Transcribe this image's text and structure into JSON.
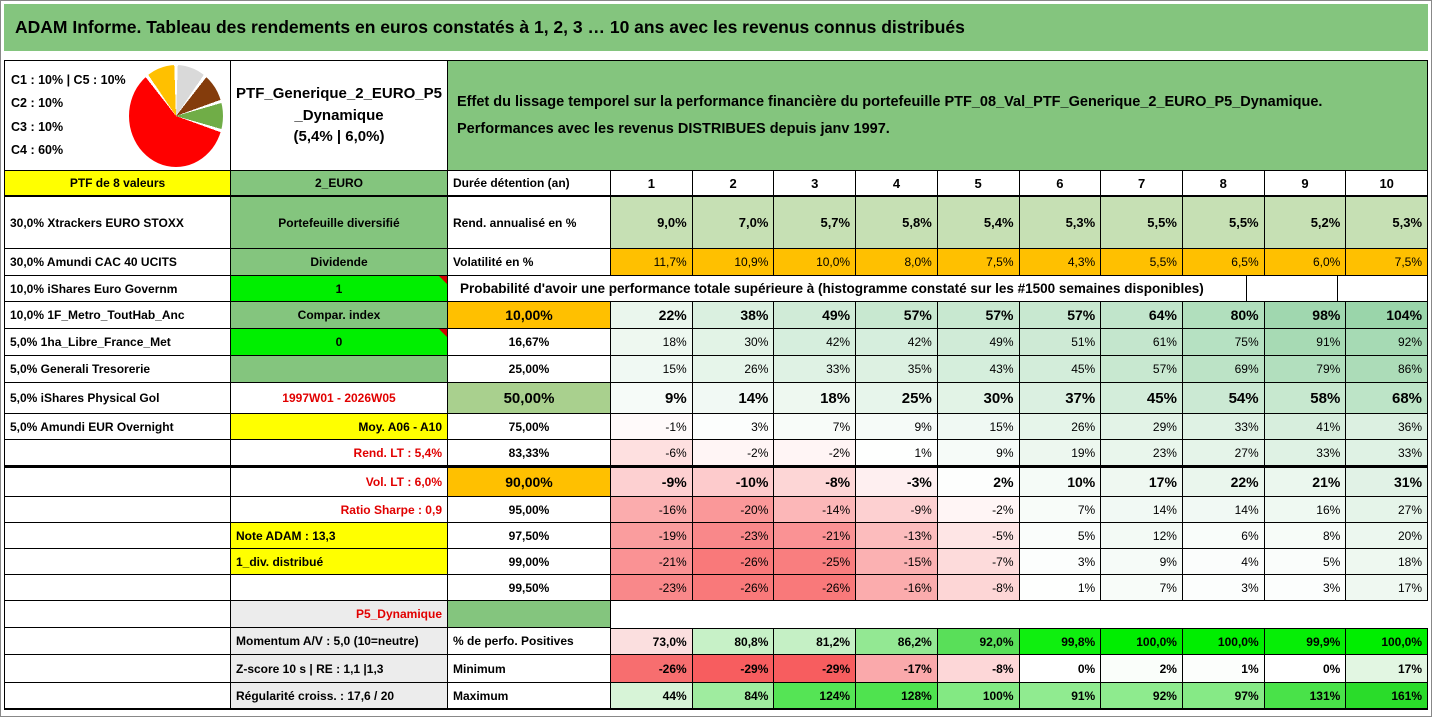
{
  "title": "ADAM Informe. Tableau des rendements en euros constatés à 1, 2, 3 … 10 ans avec les revenus connus distribués",
  "palette": {
    "green": "#84C57E",
    "sage": "#A9D08E",
    "pale": "#C6E0B4",
    "orange": "#FFC000",
    "yellow": "#FFFF00",
    "bright": "#00EF00",
    "gray": "#ECECEC",
    "redtext": "#E10000",
    "scale_pos_max": "#63BE7B",
    "scale_neg_max": "#F8696B"
  },
  "info": {
    "composition_lines": [
      "C1 : 10% | C5 : 10%",
      "C2 : 10%",
      "C3 : 10%",
      "C4 : 60%"
    ],
    "pie": {
      "slices": [
        {
          "value": 10,
          "color": "#D9D9D9"
        },
        {
          "value": 10,
          "color": "#843C0C"
        },
        {
          "value": 10,
          "color": "#70AD47"
        },
        {
          "value": 60,
          "color": "#FF0000"
        },
        {
          "value": 10,
          "color": "#FFC000"
        }
      ]
    },
    "portfolio_name_lines": [
      "PTF_Generique_2_EURO_P5",
      "_Dynamique",
      "(5,4% | 6,0%)"
    ],
    "description_lines": [
      "Effet du lissage temporel sur la performance financière du portefeuille PTF_08_Val_PTF_Generique_2_EURO_P5_Dynamique.",
      "Performances avec les revenus DISTRIBUES depuis janv 1997."
    ]
  },
  "table": {
    "years": [
      "1",
      "2",
      "3",
      "4",
      "5",
      "6",
      "7",
      "8",
      "9",
      "10"
    ],
    "rows": [
      {
        "a": {
          "t": "PTF de 8 valeurs",
          "cls": "bg-yellow b tc"
        },
        "b": {
          "t": "2_EURO",
          "cls": "bg-green b tc"
        },
        "c": {
          "t": "Durée détention (an)",
          "cls": "b"
        },
        "type": "years",
        "rowCls": "thickB"
      },
      {
        "a": {
          "t": "30,0% Xtrackers EURO STOXX",
          "cls": "b"
        },
        "b": {
          "t": "Portefeuille diversifié",
          "cls": "bg-green b tc"
        },
        "c": {
          "t": "Rend. annualisé en %",
          "cls": "b"
        },
        "type": "cells",
        "cellCls": "b tr sz13",
        "cellBg": "#C6E0B4",
        "values": [
          "9,0%",
          "7,0%",
          "5,7%",
          "5,8%",
          "5,4%",
          "5,3%",
          "5,5%",
          "5,5%",
          "5,2%",
          "5,3%"
        ]
      },
      {
        "a": {
          "t": "30,0% Amundi CAC 40 UCITS",
          "cls": "b"
        },
        "b": {
          "t": "Dividende",
          "cls": "bg-green b tc"
        },
        "c": {
          "t": "Volatilité en %",
          "cls": "b"
        },
        "type": "cells",
        "cellCls": "tr",
        "cellBg": "#FFC000",
        "values": [
          "11,7%",
          "10,9%",
          "10,0%",
          "8,0%",
          "7,5%",
          "4,3%",
          "5,5%",
          "6,5%",
          "6,0%",
          "7,5%"
        ]
      },
      {
        "a": {
          "t": "10,0% iShares Euro Governm",
          "cls": "b"
        },
        "b": {
          "t": "1",
          "cls": "bg-bright b tc comment"
        },
        "type": "span",
        "spanText": "Probabilité d'avoir une performance totale supérieure à (histogramme constaté sur les #1500 semaines disponibles)",
        "tailCount": 2
      },
      {
        "a": {
          "t": "10,0% 1F_Metro_ToutHab_Anc",
          "cls": "b"
        },
        "b": {
          "t": "Compar. index",
          "cls": "bg-green b tc"
        },
        "c": {
          "t": "10,00%",
          "cls": "bg-orange b tc sz14"
        },
        "type": "scale",
        "cellCls": "b tr sz14",
        "values": [
          22,
          38,
          49,
          57,
          57,
          57,
          64,
          80,
          98,
          104
        ]
      },
      {
        "a": {
          "t": "5,0% 1ha_Libre_France_Met",
          "cls": "b"
        },
        "b": {
          "t": "0",
          "cls": "bg-bright b tc comment"
        },
        "c": {
          "t": "16,67%",
          "cls": "b tc"
        },
        "type": "scale",
        "cellCls": "tr",
        "values": [
          18,
          30,
          42,
          42,
          49,
          51,
          61,
          75,
          91,
          92
        ]
      },
      {
        "a": {
          "t": "5,0% Generali Tresorerie",
          "cls": "b"
        },
        "b": {
          "t": "",
          "cls": "bg-green"
        },
        "c": {
          "t": "25,00%",
          "cls": "b tc"
        },
        "type": "scale",
        "cellCls": "tr",
        "values": [
          15,
          26,
          33,
          35,
          43,
          45,
          57,
          69,
          79,
          86
        ]
      },
      {
        "a": {
          "t": "5,0% iShares Physical Gol",
          "cls": "b"
        },
        "b": {
          "t": "1997W01 - 2026W05",
          "cls": "b tc red"
        },
        "c": {
          "t": "50,00%",
          "cls": "bg-sage b tc sz15"
        },
        "type": "scale",
        "cellCls": "b tr sz15",
        "values": [
          9,
          14,
          18,
          25,
          30,
          37,
          45,
          54,
          58,
          68
        ]
      },
      {
        "a": {
          "t": "5,0% Amundi EUR Overnight",
          "cls": "b"
        },
        "b": {
          "t": "Moy. A06 - A10",
          "cls": "bg-yellow b tr"
        },
        "c": {
          "t": "75,00%",
          "cls": "b tc"
        },
        "type": "scale",
        "cellCls": "tr",
        "values": [
          -1,
          3,
          7,
          9,
          15,
          26,
          29,
          33,
          41,
          36
        ]
      },
      {
        "a": {
          "t": ""
        },
        "b": {
          "t": "Rend. LT : 5,4%",
          "cls": "b tr red"
        },
        "c": {
          "t": "83,33%",
          "cls": "b tc"
        },
        "type": "scale",
        "cellCls": "tr",
        "values": [
          -6,
          -2,
          -2,
          1,
          9,
          19,
          23,
          27,
          33,
          33
        ]
      },
      {
        "a": {
          "t": ""
        },
        "b": {
          "t": "Vol. LT : 6,0%",
          "cls": "b tr red"
        },
        "c": {
          "t": "90,00%",
          "cls": "bg-orange b tc sz14"
        },
        "type": "scale",
        "cellCls": "b tr sz14",
        "values": [
          -9,
          -10,
          -8,
          -3,
          2,
          10,
          17,
          22,
          21,
          31
        ],
        "rowCls": "thickT"
      },
      {
        "a": {
          "t": ""
        },
        "b": {
          "t": "Ratio Sharpe : 0,9",
          "cls": "b tr red"
        },
        "c": {
          "t": "95,00%",
          "cls": "b tc"
        },
        "type": "scale",
        "cellCls": "tr",
        "values": [
          -16,
          -20,
          -14,
          -9,
          -2,
          7,
          14,
          14,
          16,
          27
        ]
      },
      {
        "a": {
          "t": ""
        },
        "b": {
          "t": "Note ADAM : 13,3",
          "cls": "bg-yellow b"
        },
        "c": {
          "t": "97,50%",
          "cls": "b tc"
        },
        "type": "scale",
        "cellCls": "tr",
        "values": [
          -19,
          -23,
          -21,
          -13,
          -5,
          5,
          12,
          6,
          8,
          20
        ]
      },
      {
        "a": {
          "t": ""
        },
        "b": {
          "t": "1_div. distribué",
          "cls": "bg-yellow b"
        },
        "c": {
          "t": "99,00%",
          "cls": "b tc"
        },
        "type": "scale",
        "cellCls": "tr",
        "values": [
          -21,
          -26,
          -25,
          -15,
          -7,
          3,
          9,
          4,
          5,
          18
        ]
      },
      {
        "a": {
          "t": ""
        },
        "b": {
          "t": ""
        },
        "c": {
          "t": "99,50%",
          "cls": "b tc"
        },
        "type": "scale",
        "cellCls": "tr",
        "values": [
          -23,
          -26,
          -26,
          -16,
          -8,
          1,
          7,
          3,
          3,
          17
        ]
      },
      {
        "a": {
          "t": ""
        },
        "b": {
          "t": "P5_Dynamique",
          "cls": "bg-gray b tr red"
        },
        "c": {
          "t": "",
          "cls": "bg-green"
        },
        "type": "plain"
      },
      {
        "a": {
          "t": ""
        },
        "b": {
          "t": "Momentum A/V : 5,0 (10=neutre)",
          "cls": "bg-gray b"
        },
        "c": {
          "t": "% de perfo. Positives",
          "cls": "b"
        },
        "type": "cells",
        "cellCls": "b tr",
        "rowCls": "cellTop",
        "values": [
          "73,0%",
          "80,8%",
          "81,2%",
          "86,2%",
          "92,0%",
          "99,8%",
          "100,0%",
          "100,0%",
          "99,9%",
          "100,0%"
        ],
        "colors": [
          "#FBDFDF",
          "#C7F1C7",
          "#C5F0C5",
          "#93E893",
          "#59DF59",
          "#0FEF0F",
          "#00EE00",
          "#00EE00",
          "#06EE06",
          "#00EE00"
        ]
      },
      {
        "a": {
          "t": ""
        },
        "b": {
          "t": "Z-score 10 s | RE : 1,1 |1,3",
          "cls": "bg-gray b"
        },
        "c": {
          "t": "Minimum",
          "cls": "b"
        },
        "type": "cells",
        "cellCls": "b tr",
        "values": [
          "-26%",
          "-29%",
          "-29%",
          "-17%",
          "-8%",
          "0%",
          "2%",
          "1%",
          "0%",
          "17%"
        ],
        "colors": [
          "#F76E6F",
          "#F75D5F",
          "#F75D5F",
          "#FAA9AB",
          "#FDD7D8",
          "#FFFFFF",
          "#FAFEFA",
          "#FCFEFC",
          "#FFFFFF",
          "#E2F6E2"
        ]
      },
      {
        "a": {
          "t": ""
        },
        "b": {
          "t": "Régularité croiss. : 17,6 / 20",
          "cls": "bg-gray b"
        },
        "c": {
          "t": "Maximum",
          "cls": "b"
        },
        "type": "cells",
        "cellCls": "b tr",
        "rowCls": "thickB",
        "values": [
          "44%",
          "84%",
          "124%",
          "128%",
          "100%",
          "91%",
          "92%",
          "97%",
          "131%",
          "161%"
        ],
        "colors": [
          "#D7F4D7",
          "#9FEC9F",
          "#55E455",
          "#4FE34F",
          "#83E983",
          "#90EB90",
          "#8EEB8E",
          "#86EA86",
          "#49E249",
          "#2ADC2A"
        ]
      }
    ]
  }
}
